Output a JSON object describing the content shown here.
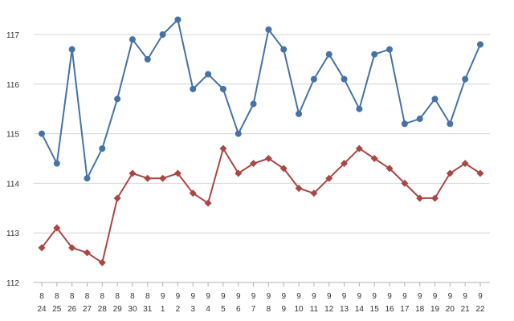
{
  "chart_data": {
    "type": "line",
    "title": "",
    "xlabel": "",
    "ylabel": "",
    "ylim": [
      112,
      117.4
    ],
    "yticks": [
      "112",
      "113",
      "114",
      "115",
      "116",
      "117"
    ],
    "grid": true,
    "legend": "none",
    "categories": [
      {
        "month": "8",
        "day": "24"
      },
      {
        "month": "8",
        "day": "25"
      },
      {
        "month": "8",
        "day": "26"
      },
      {
        "month": "8",
        "day": "27"
      },
      {
        "month": "8",
        "day": "28"
      },
      {
        "month": "8",
        "day": "29"
      },
      {
        "month": "8",
        "day": "30"
      },
      {
        "month": "8",
        "day": "31"
      },
      {
        "month": "9",
        "day": "1"
      },
      {
        "month": "9",
        "day": "2"
      },
      {
        "month": "9",
        "day": "3"
      },
      {
        "month": "9",
        "day": "4"
      },
      {
        "month": "9",
        "day": "5"
      },
      {
        "month": "9",
        "day": "6"
      },
      {
        "month": "9",
        "day": "7"
      },
      {
        "month": "9",
        "day": "8"
      },
      {
        "month": "9",
        "day": "9"
      },
      {
        "month": "9",
        "day": "10"
      },
      {
        "month": "9",
        "day": "11"
      },
      {
        "month": "9",
        "day": "12"
      },
      {
        "month": "9",
        "day": "13"
      },
      {
        "month": "9",
        "day": "14"
      },
      {
        "month": "9",
        "day": "15"
      },
      {
        "month": "9",
        "day": "16"
      },
      {
        "month": "9",
        "day": "17"
      },
      {
        "month": "9",
        "day": "18"
      },
      {
        "month": "9",
        "day": "19"
      },
      {
        "month": "9",
        "day": "20"
      },
      {
        "month": "9",
        "day": "21"
      },
      {
        "month": "9",
        "day": "22"
      }
    ],
    "series": [
      {
        "marker": "circle",
        "color": "#4572A7",
        "values": [
          115.0,
          114.4,
          116.7,
          114.1,
          114.7,
          115.7,
          116.9,
          116.5,
          117.0,
          117.3,
          115.9,
          116.2,
          115.9,
          115.0,
          115.6,
          117.1,
          116.7,
          115.4,
          116.1,
          116.6,
          116.1,
          115.5,
          116.6,
          116.7,
          115.2,
          115.3,
          115.7,
          115.2,
          116.1,
          116.8
        ]
      },
      {
        "marker": "diamond",
        "color": "#AA4643",
        "values": [
          112.7,
          113.1,
          112.7,
          112.6,
          112.4,
          113.7,
          114.2,
          114.1,
          114.1,
          114.2,
          113.8,
          113.6,
          114.7,
          114.2,
          114.4,
          114.5,
          114.3,
          113.9,
          113.8,
          114.1,
          114.4,
          114.7,
          114.5,
          114.3,
          114.0,
          113.7,
          113.7,
          114.2,
          114.4,
          114.2
        ]
      }
    ]
  }
}
